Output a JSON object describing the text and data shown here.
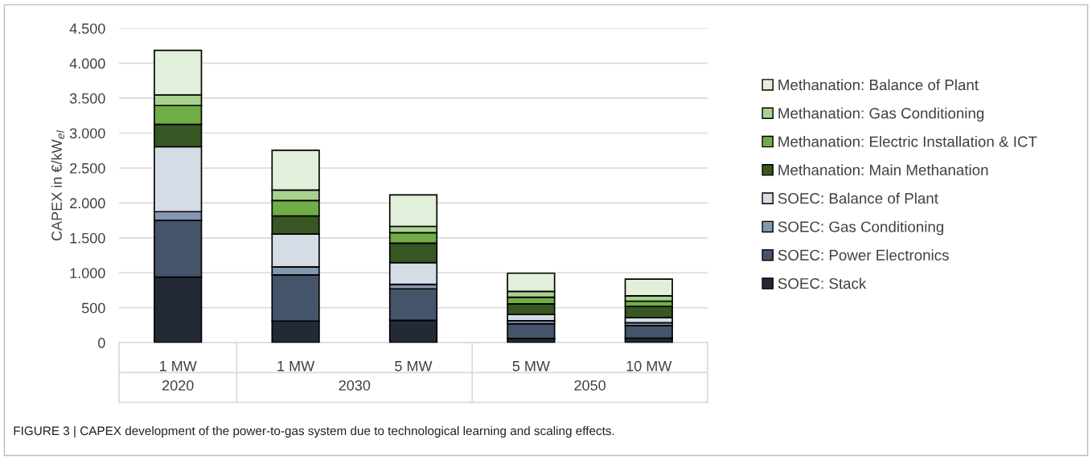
{
  "chart_data": {
    "type": "bar",
    "stacked": true,
    "ylabel": "CAPEX in €/kW$_{el}$",
    "categories": [
      "1 MW",
      "1 MW",
      "5 MW",
      "5 MW",
      "10 MW"
    ],
    "series": [
      {
        "name": "SOEC: Stack",
        "color": "#222a35",
        "values": [
          940,
          310,
          320,
          60,
          65
        ]
      },
      {
        "name": "SOEC: Power Electronics",
        "color": "#44546a",
        "values": [
          810,
          660,
          450,
          210,
          180
        ]
      },
      {
        "name": "SOEC: Gas Conditioning",
        "color": "#8497b0",
        "values": [
          125,
          115,
          65,
          45,
          40
        ]
      },
      {
        "name": "SOEC: Balance of Plant",
        "color": "#d6dce5",
        "values": [
          930,
          470,
          310,
          90,
          75
        ]
      },
      {
        "name": "Methanation: Main Methanation",
        "color": "#375623",
        "values": [
          320,
          260,
          280,
          150,
          160
        ]
      },
      {
        "name": "Methanation: Electric Installation & ICT",
        "color": "#70ad47",
        "values": [
          270,
          220,
          150,
          95,
          75
        ]
      },
      {
        "name": "Methanation: Gas Conditioning",
        "color": "#a9d18e",
        "values": [
          150,
          150,
          90,
          85,
          75
        ]
      },
      {
        "name": "Methanation: Balance of Plant",
        "color": "#e2efda",
        "values": [
          640,
          570,
          450,
          260,
          240
        ]
      }
    ],
    "ylim": [
      0,
      4500
    ],
    "yticks": [
      0,
      {
        "value": 500,
        "label": "500"
      },
      {
        "value": 1000,
        "label": "1.000"
      },
      {
        "value": 1500,
        "label": "1.500"
      },
      {
        "value": 2000,
        "label": "2.000"
      },
      {
        "value": 2500,
        "label": "2.500"
      },
      {
        "value": 3000,
        "label": "3.000"
      },
      {
        "value": 3500,
        "label": "3.500"
      },
      {
        "value": 4000,
        "label": "4.000"
      },
      {
        "value": 4500,
        "label": "4.500"
      }
    ],
    "grid": "y",
    "legend": "right",
    "annotations": [
      "2020",
      "2030",
      "2050",
      "FIGURE 3 | CAPEX development of the power-to-gas system due to technological learning and scaling effects."
    ]
  }
}
